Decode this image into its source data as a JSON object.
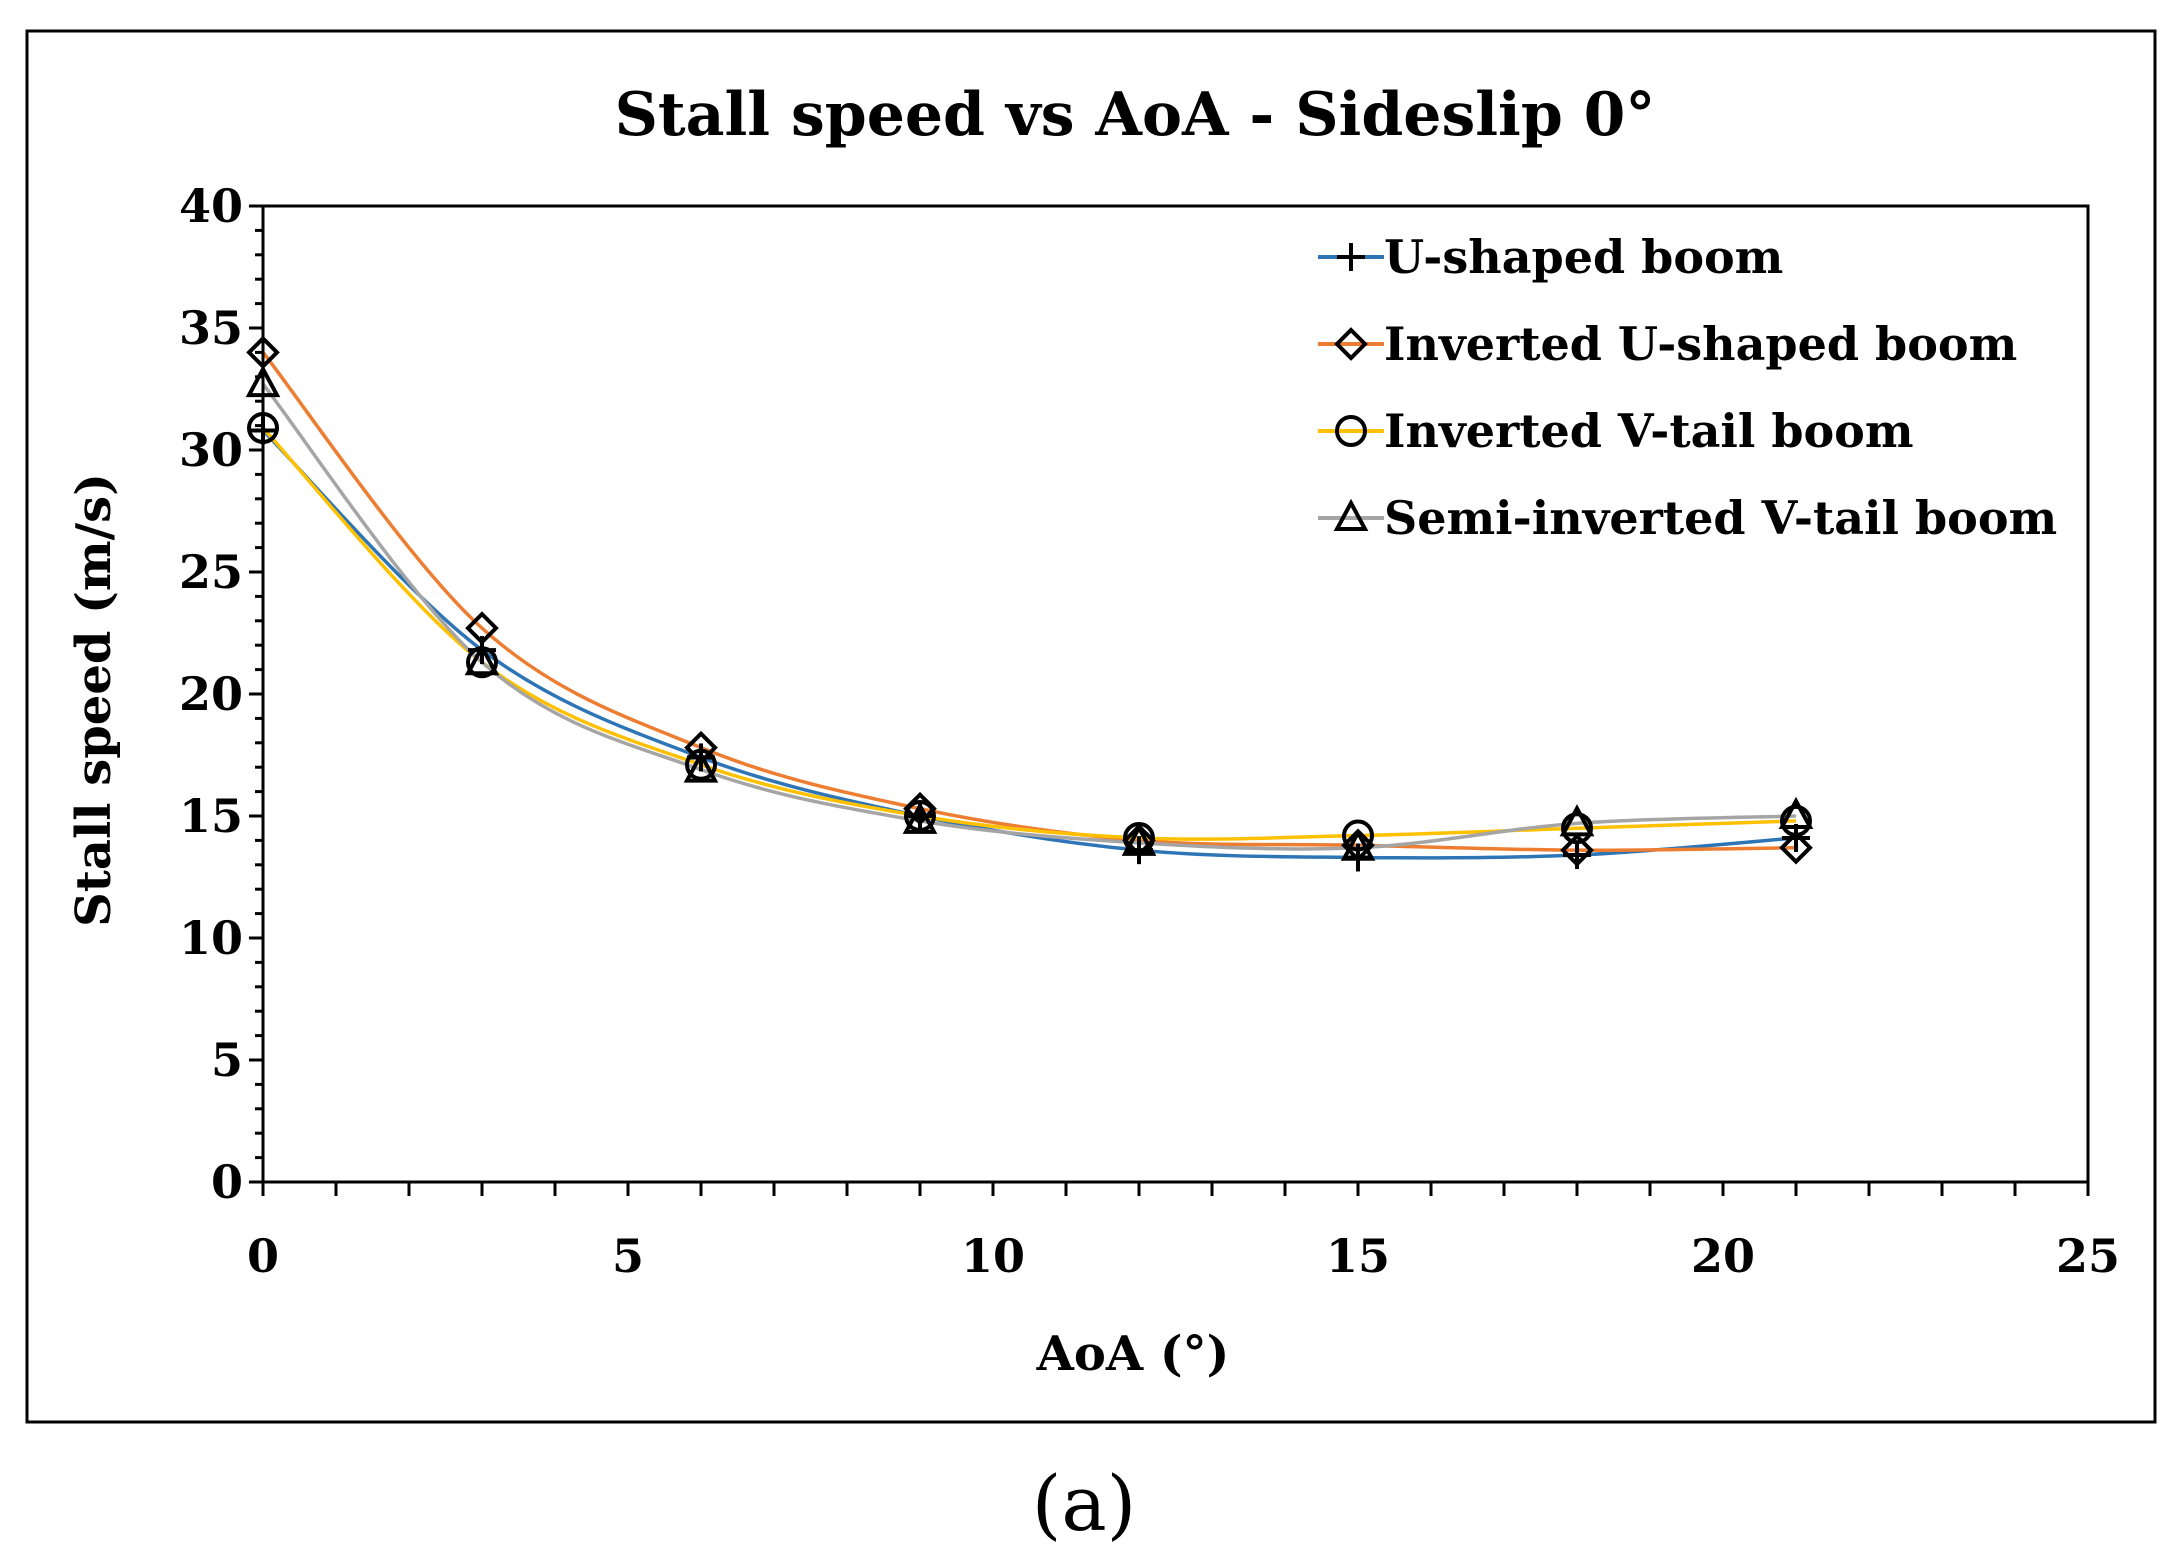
{
  "chart_data": {
    "type": "line",
    "title": "Stall speed vs AoA - Sideslip 0°",
    "xlabel": "AoA (°)",
    "ylabel": "Stall speed (m/s)",
    "xlim": [
      0,
      25
    ],
    "ylim": [
      0,
      40
    ],
    "x_major_step": 5,
    "x_minor_step": 1,
    "y_major_step": 5,
    "y_minor_step": 1,
    "grid": false,
    "legend_position": "top-right",
    "x": [
      0,
      3,
      6,
      9,
      12,
      15,
      18,
      21
    ],
    "series": [
      {
        "name": "U-shaped boom",
        "marker": "plus",
        "color": "#2E75B6",
        "values": [
          30.8,
          21.8,
          17.4,
          15.0,
          13.6,
          13.3,
          13.4,
          14.1
        ]
      },
      {
        "name": "Inverted U-shaped boom",
        "marker": "diamond",
        "color": "#ED7D31",
        "values": [
          34.0,
          22.7,
          17.8,
          15.3,
          14.0,
          13.8,
          13.6,
          13.7
        ]
      },
      {
        "name": "Inverted V-tail boom",
        "marker": "circle",
        "color": "#FFC000",
        "values": [
          30.9,
          21.3,
          17.1,
          15.0,
          14.1,
          14.2,
          14.5,
          14.8
        ]
      },
      {
        "name": "Semi-inverted V-tail boom",
        "marker": "triangle",
        "color": "#A5A5A5",
        "values": [
          32.7,
          21.3,
          16.9,
          14.8,
          13.9,
          13.7,
          14.7,
          15.0
        ]
      }
    ]
  },
  "caption": "(a)"
}
